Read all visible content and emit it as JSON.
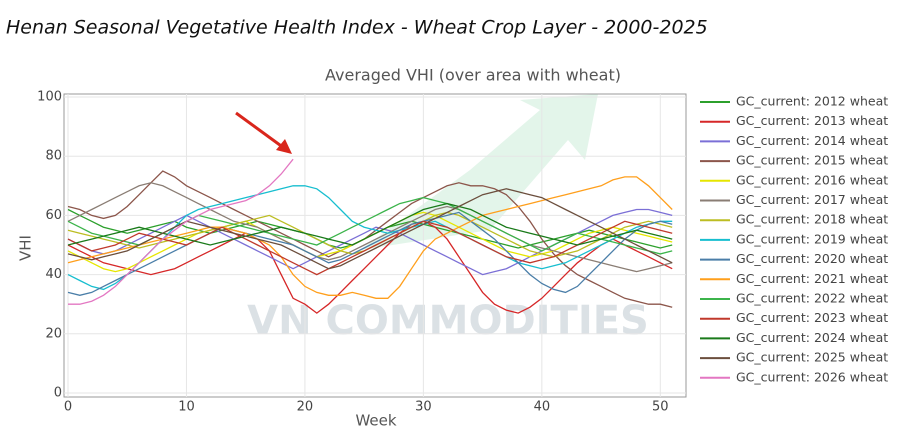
{
  "page_title": "Henan Seasonal Vegetative Health Index - Wheat Crop Layer - 2000-2025",
  "watermark": "VN COMMODITIES",
  "chart_data": {
    "type": "line",
    "title": "Averaged VHI (over area with  wheat)",
    "x_label": "Week",
    "y_label": "VHI",
    "xlim": [
      0,
      52
    ],
    "ylim": [
      0,
      100
    ],
    "xticks": [
      0,
      10,
      20,
      30,
      40,
      50
    ],
    "yticks": [
      0,
      20,
      40,
      60,
      80,
      100
    ],
    "grid": true,
    "legend": "right",
    "x": [
      0,
      1,
      2,
      3,
      4,
      5,
      6,
      7,
      8,
      9,
      10,
      11,
      12,
      13,
      14,
      15,
      16,
      17,
      18,
      19,
      20,
      21,
      22,
      23,
      24,
      25,
      26,
      27,
      28,
      29,
      30,
      31,
      32,
      33,
      34,
      35,
      36,
      37,
      38,
      39,
      40,
      41,
      42,
      43,
      44,
      45,
      46,
      47,
      48,
      49,
      50,
      51
    ],
    "series": [
      {
        "name": "GC_current: 2012 wheat",
        "color": "#2ca02c",
        "values": [
          62,
          60,
          58,
          56,
          55,
          54,
          55,
          56,
          57,
          58,
          56,
          55,
          54,
          55,
          56,
          57,
          58,
          57,
          56,
          55,
          54,
          52,
          50,
          49,
          50,
          52,
          54,
          56,
          57,
          58,
          57,
          56,
          55,
          54,
          53,
          52,
          51,
          50,
          49,
          50,
          51,
          52,
          53,
          54,
          55,
          54,
          53,
          52,
          51,
          50,
          49,
          50
        ]
      },
      {
        "name": "GC_current: 2013 wheat",
        "color": "#d62728",
        "values": [
          50,
          48,
          46,
          44,
          43,
          42,
          41,
          40,
          41,
          42,
          44,
          46,
          48,
          50,
          52,
          54,
          52,
          48,
          40,
          32,
          30,
          27,
          30,
          34,
          38,
          42,
          46,
          50,
          54,
          57,
          58,
          56,
          52,
          46,
          40,
          34,
          30,
          28,
          27,
          29,
          32,
          36,
          40,
          44,
          47,
          50,
          52,
          50,
          48,
          46,
          44,
          42
        ]
      },
      {
        "name": "GC_current: 2014 wheat",
        "color": "#7b6fd6",
        "values": [
          52,
          50,
          48,
          47,
          48,
          50,
          52,
          54,
          56,
          58,
          60,
          58,
          56,
          54,
          52,
          50,
          48,
          46,
          44,
          42,
          44,
          46,
          48,
          50,
          52,
          54,
          56,
          55,
          54,
          52,
          50,
          48,
          46,
          44,
          42,
          40,
          41,
          42,
          44,
          46,
          48,
          50,
          52,
          54,
          56,
          58,
          60,
          61,
          62,
          62,
          61,
          60
        ]
      },
      {
        "name": "GC_current: 2015 wheat",
        "color": "#8c564b",
        "values": [
          63,
          62,
          60,
          59,
          60,
          63,
          67,
          71,
          75,
          73,
          70,
          68,
          66,
          64,
          62,
          60,
          58,
          56,
          54,
          52,
          50,
          48,
          46,
          48,
          50,
          52,
          55,
          58,
          61,
          64,
          66,
          68,
          70,
          71,
          70,
          70,
          69,
          67,
          63,
          58,
          52,
          47,
          43,
          40,
          38,
          36,
          34,
          32,
          31,
          30,
          30,
          29
        ]
      },
      {
        "name": "GC_current: 2016 wheat",
        "color": "#e6e600",
        "values": [
          48,
          46,
          44,
          42,
          41,
          42,
          44,
          46,
          48,
          50,
          52,
          54,
          55,
          56,
          57,
          58,
          56,
          54,
          52,
          50,
          48,
          46,
          47,
          48,
          50,
          52,
          54,
          56,
          58,
          60,
          61,
          60,
          58,
          56,
          54,
          52,
          50,
          48,
          47,
          46,
          47,
          48,
          50,
          52,
          54,
          55,
          56,
          55,
          54,
          53,
          52,
          51
        ]
      },
      {
        "name": "GC_current: 2017 wheat",
        "color": "#8a7d74",
        "values": [
          58,
          60,
          62,
          64,
          66,
          68,
          70,
          71,
          70,
          68,
          66,
          64,
          62,
          60,
          58,
          57,
          56,
          54,
          52,
          50,
          48,
          46,
          45,
          46,
          48,
          50,
          52,
          54,
          56,
          58,
          60,
          62,
          63,
          62,
          60,
          58,
          56,
          54,
          52,
          50,
          49,
          48,
          47,
          46,
          45,
          44,
          43,
          42,
          41,
          42,
          43,
          44
        ]
      },
      {
        "name": "GC_current: 2018 wheat",
        "color": "#bcbd22",
        "values": [
          55,
          54,
          53,
          52,
          51,
          50,
          49,
          50,
          51,
          52,
          53,
          54,
          55,
          56,
          57,
          58,
          59,
          60,
          58,
          56,
          54,
          52,
          50,
          48,
          47,
          48,
          50,
          52,
          54,
          56,
          58,
          60,
          61,
          60,
          58,
          56,
          54,
          52,
          50,
          48,
          47,
          46,
          47,
          48,
          50,
          52,
          54,
          56,
          57,
          58,
          57,
          56
        ]
      },
      {
        "name": "GC_current: 2019 wheat",
        "color": "#17becf",
        "values": [
          40,
          38,
          36,
          35,
          37,
          40,
          44,
          48,
          52,
          56,
          60,
          62,
          63,
          64,
          65,
          66,
          67,
          68,
          69,
          70,
          70,
          69,
          66,
          62,
          58,
          56,
          55,
          54,
          55,
          56,
          57,
          58,
          56,
          54,
          52,
          50,
          48,
          46,
          44,
          43,
          42,
          43,
          44,
          46,
          48,
          50,
          52,
          54,
          56,
          57,
          58,
          58
        ]
      },
      {
        "name": "GC_current: 2020 wheat",
        "color": "#4a7ea8",
        "values": [
          34,
          33,
          34,
          36,
          38,
          40,
          42,
          44,
          46,
          48,
          50,
          52,
          54,
          56,
          55,
          54,
          53,
          52,
          51,
          50,
          48,
          46,
          44,
          45,
          47,
          49,
          51,
          53,
          55,
          57,
          58,
          59,
          60,
          61,
          58,
          55,
          52,
          48,
          44,
          40,
          37,
          35,
          34,
          36,
          40,
          44,
          48,
          52,
          55,
          57,
          58,
          57
        ]
      },
      {
        "name": "GC_current: 2021 wheat",
        "color": "#ff9f1c",
        "values": [
          44,
          45,
          46,
          47,
          48,
          49,
          50,
          51,
          52,
          53,
          54,
          55,
          56,
          56,
          55,
          54,
          52,
          50,
          46,
          40,
          36,
          34,
          33,
          33,
          34,
          33,
          32,
          32,
          36,
          42,
          48,
          52,
          54,
          56,
          58,
          60,
          61,
          62,
          63,
          64,
          65,
          66,
          67,
          68,
          69,
          70,
          72,
          73,
          73,
          70,
          66,
          62
        ]
      },
      {
        "name": "GC_current: 2022 wheat",
        "color": "#3cb44b",
        "values": [
          58,
          56,
          54,
          53,
          52,
          51,
          50,
          52,
          54,
          56,
          58,
          60,
          59,
          58,
          57,
          56,
          55,
          54,
          53,
          52,
          51,
          50,
          52,
          54,
          56,
          58,
          60,
          62,
          64,
          65,
          66,
          65,
          64,
          62,
          60,
          58,
          56,
          54,
          52,
          50,
          48,
          50,
          52,
          54,
          53,
          52,
          51,
          50,
          49,
          48,
          47,
          48
        ]
      },
      {
        "name": "GC_current: 2023 wheat",
        "color": "#c0392b",
        "values": [
          52,
          50,
          48,
          49,
          50,
          52,
          54,
          53,
          52,
          51,
          50,
          52,
          54,
          56,
          54,
          52,
          50,
          48,
          46,
          44,
          42,
          40,
          42,
          44,
          46,
          48,
          50,
          52,
          54,
          56,
          58,
          57,
          56,
          54,
          52,
          50,
          48,
          46,
          45,
          44,
          45,
          46,
          48,
          50,
          52,
          54,
          56,
          58,
          57,
          56,
          55,
          54
        ]
      },
      {
        "name": "GC_current: 2024 wheat",
        "color": "#1a7a1a",
        "values": [
          50,
          51,
          52,
          53,
          54,
          55,
          56,
          55,
          54,
          53,
          52,
          51,
          50,
          51,
          52,
          53,
          54,
          55,
          56,
          55,
          54,
          53,
          52,
          51,
          50,
          52,
          54,
          56,
          58,
          60,
          62,
          63,
          64,
          63,
          62,
          60,
          58,
          56,
          55,
          54,
          53,
          52,
          51,
          50,
          51,
          52,
          53,
          54,
          55,
          54,
          53,
          52
        ]
      },
      {
        "name": "GC_current: 2025 wheat",
        "color": "#6b4e3d",
        "values": [
          47,
          46,
          45,
          46,
          47,
          48,
          50,
          52,
          54,
          56,
          58,
          57,
          56,
          55,
          54,
          53,
          52,
          51,
          50,
          48,
          46,
          44,
          42,
          43,
          45,
          47,
          49,
          51,
          53,
          55,
          57,
          59,
          61,
          63,
          65,
          67,
          68,
          69,
          68,
          67,
          66,
          64,
          62,
          60,
          58,
          56,
          54,
          52,
          50,
          48,
          46,
          44
        ]
      },
      {
        "name": "GC_current: 2026 wheat",
        "color": "#e377c2",
        "values": [
          30,
          30,
          31,
          33,
          36,
          40,
          44,
          48,
          52,
          55,
          58,
          60,
          62,
          63,
          64,
          65,
          67,
          70,
          74,
          79,
          null,
          null,
          null,
          null,
          null,
          null,
          null,
          null,
          null,
          null,
          null,
          null,
          null,
          null,
          null,
          null,
          null,
          null,
          null,
          null,
          null,
          null,
          null,
          null,
          null,
          null,
          null,
          null,
          null,
          null,
          null,
          null
        ]
      }
    ]
  }
}
